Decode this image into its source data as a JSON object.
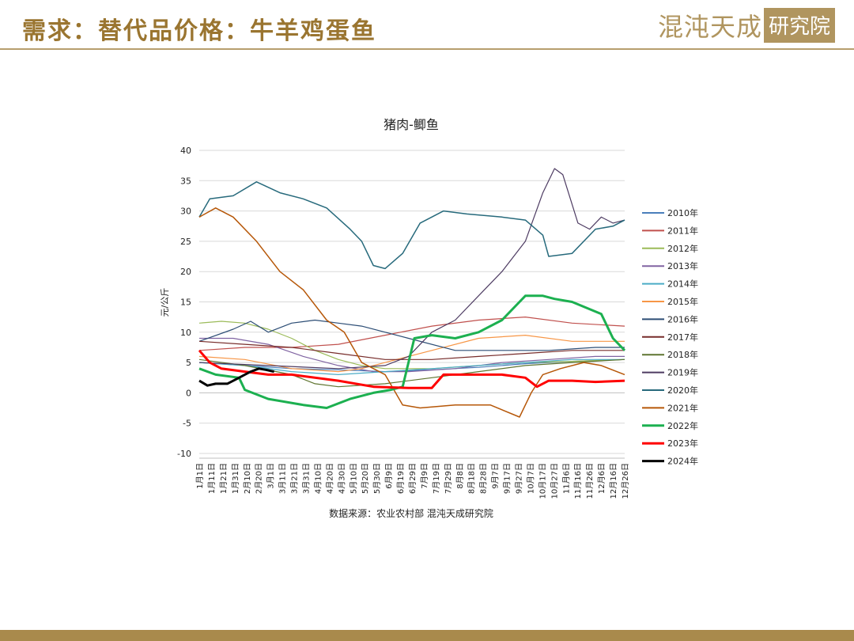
{
  "header": {
    "title": "需求：替代品价格：牛羊鸡蛋鱼",
    "logo_text": "混沌天成",
    "logo_box": "研究院"
  },
  "footer": {
    "source": "数据来源：农业农村部 混沌天成研究院"
  },
  "colors": {
    "title": "#9a7530",
    "rule": "#b79e6e",
    "bar": "#a98a4c"
  },
  "chart_data": {
    "type": "line",
    "title": "猪肉-鲫鱼",
    "xlabel": "",
    "ylabel": "元/公斤",
    "ylim": [
      -10,
      40
    ],
    "yticks": [
      -10,
      -5,
      0,
      5,
      10,
      15,
      20,
      25,
      30,
      35,
      40
    ],
    "x_categories": [
      "1月1日",
      "1月11日",
      "1月21日",
      "1月31日",
      "2月10日",
      "2月20日",
      "3月1日",
      "3月11日",
      "3月21日",
      "3月31日",
      "4月10日",
      "4月20日",
      "4月30日",
      "5月10日",
      "5月20日",
      "5月30日",
      "6月9日",
      "6月19日",
      "6月29日",
      "7月9日",
      "7月19日",
      "7月29日",
      "8月8日",
      "8月18日",
      "8月28日",
      "9月7日",
      "9月17日",
      "9月27日",
      "10月7日",
      "10月17日",
      "10月27日",
      "11月6日",
      "11月16日",
      "11月26日",
      "12月6日",
      "12月16日",
      "12月26日"
    ],
    "legend_position": "right",
    "series": [
      {
        "name": "2010年",
        "color": "#4a7ebb",
        "width": 1.2,
        "x": [
          1,
          40,
          80,
          120,
          160,
          200,
          240,
          280,
          320,
          365
        ],
        "y": [
          5,
          4.5,
          4,
          3.8,
          3.5,
          3.8,
          4.2,
          4.8,
          5.2,
          5.5
        ]
      },
      {
        "name": "2011年",
        "color": "#c0504d",
        "width": 1.2,
        "x": [
          1,
          40,
          80,
          120,
          160,
          200,
          240,
          280,
          320,
          365
        ],
        "y": [
          7,
          7.5,
          7.5,
          8,
          9.5,
          11,
          12,
          12.5,
          11.5,
          11
        ]
      },
      {
        "name": "2012年",
        "color": "#9bbb59",
        "width": 1.2,
        "x": [
          1,
          20,
          40,
          60,
          80,
          100,
          120,
          140,
          160,
          200,
          240,
          280,
          320,
          365
        ],
        "y": [
          11.5,
          11.8,
          11.5,
          10.5,
          9,
          7,
          5.5,
          4.5,
          4,
          4,
          4.5,
          5,
          5.2,
          5.5
        ]
      },
      {
        "name": "2013年",
        "color": "#8064a2",
        "width": 1.2,
        "x": [
          1,
          30,
          60,
          90,
          120,
          150,
          180,
          220,
          260,
          300,
          340,
          365
        ],
        "y": [
          9,
          9,
          8,
          6,
          4.5,
          3.5,
          3.5,
          4,
          5,
          5.5,
          6,
          6
        ]
      },
      {
        "name": "2014年",
        "color": "#4bacc6",
        "width": 1.2,
        "x": [
          1,
          40,
          80,
          120,
          160,
          200,
          240,
          280,
          320,
          365
        ],
        "y": [
          5,
          4.5,
          3.5,
          3,
          3.5,
          4,
          4.5,
          5,
          5.5,
          5.5
        ]
      },
      {
        "name": "2015年",
        "color": "#f79646",
        "width": 1.2,
        "x": [
          1,
          40,
          80,
          120,
          140,
          160,
          200,
          240,
          280,
          320,
          365
        ],
        "y": [
          6,
          5.5,
          4,
          3.5,
          4,
          5,
          7,
          9,
          9.5,
          8.5,
          8.5
        ]
      },
      {
        "name": "2016年",
        "color": "#2c4d75",
        "width": 1.2,
        "x": [
          1,
          30,
          45,
          60,
          80,
          100,
          120,
          140,
          180,
          220,
          260,
          300,
          340,
          365
        ],
        "y": [
          8.5,
          10.5,
          11.8,
          10,
          11.5,
          12,
          11.5,
          11,
          9,
          7,
          7,
          7,
          7.5,
          7.5
        ]
      },
      {
        "name": "2017年",
        "color": "#772c2a",
        "width": 1.2,
        "x": [
          1,
          40,
          80,
          120,
          160,
          200,
          240,
          280,
          320,
          365
        ],
        "y": [
          8.5,
          8,
          7.5,
          6.5,
          5.5,
          5.5,
          6,
          6.5,
          7,
          7
        ]
      },
      {
        "name": "2018年",
        "color": "#5f7530",
        "width": 1.2,
        "x": [
          1,
          40,
          80,
          100,
          120,
          160,
          200,
          240,
          280,
          320,
          365
        ],
        "y": [
          5.5,
          4.5,
          3,
          1.5,
          1,
          1.5,
          2.5,
          3.5,
          4.5,
          5,
          5.5
        ]
      },
      {
        "name": "2019年",
        "color": "#4d3b62",
        "width": 1.2,
        "x": [
          1,
          60,
          120,
          160,
          180,
          200,
          220,
          240,
          260,
          280,
          295,
          305,
          312,
          325,
          335,
          345,
          355,
          365
        ],
        "y": [
          5,
          4.5,
          4,
          4.5,
          6,
          10,
          12,
          16,
          20,
          25,
          33,
          37,
          36,
          28,
          27,
          29,
          28,
          28.5
        ]
      },
      {
        "name": "2020年",
        "color": "#276a7c",
        "width": 1.5,
        "x": [
          1,
          10,
          30,
          50,
          70,
          90,
          110,
          130,
          140,
          150,
          160,
          175,
          190,
          210,
          230,
          260,
          280,
          295,
          300,
          320,
          340,
          355,
          365
        ],
        "y": [
          29,
          32,
          32.5,
          34.8,
          33,
          32,
          30.5,
          27,
          25,
          21,
          20.5,
          23,
          28,
          30,
          29.5,
          29,
          28.5,
          26,
          22.5,
          23,
          27,
          27.5,
          28.5
        ]
      },
      {
        "name": "2021年",
        "color": "#b65708",
        "width": 1.5,
        "x": [
          1,
          15,
          30,
          50,
          70,
          90,
          110,
          125,
          140,
          160,
          175,
          190,
          220,
          250,
          275,
          285,
          295,
          310,
          330,
          345,
          365
        ],
        "y": [
          29,
          30.5,
          29,
          25,
          20,
          17,
          12,
          10,
          5,
          3,
          -2,
          -2.5,
          -2,
          -2,
          -4,
          0,
          3,
          4,
          5,
          4.5,
          3
        ]
      },
      {
        "name": "2022年",
        "color": "#1cb050",
        "width": 3.0,
        "x": [
          1,
          15,
          35,
          40,
          60,
          90,
          110,
          130,
          150,
          165,
          175,
          185,
          200,
          220,
          240,
          260,
          280,
          295,
          305,
          320,
          345,
          355,
          365
        ],
        "y": [
          4,
          3,
          2.5,
          0.5,
          -1,
          -2,
          -2.5,
          -1,
          0,
          0.5,
          1,
          9,
          9.5,
          9,
          10,
          12,
          16,
          16,
          15.5,
          15,
          13,
          9,
          7
        ]
      },
      {
        "name": "2023年",
        "color": "#ff0000",
        "width": 3.0,
        "x": [
          1,
          10,
          20,
          40,
          60,
          80,
          120,
          150,
          180,
          200,
          210,
          230,
          260,
          280,
          290,
          300,
          320,
          340,
          365
        ],
        "y": [
          7,
          5,
          4,
          3.5,
          3,
          3,
          2,
          1,
          0.8,
          0.8,
          3,
          3,
          3,
          2.5,
          1,
          2,
          2,
          1.8,
          2
        ]
      },
      {
        "name": "2024年",
        "color": "#000000",
        "width": 3.0,
        "x": [
          1,
          8,
          15,
          25,
          35,
          45,
          52,
          58,
          65
        ],
        "y": [
          2,
          1.2,
          1.5,
          1.5,
          2.5,
          3.5,
          4,
          3.8,
          3.5
        ]
      }
    ]
  }
}
